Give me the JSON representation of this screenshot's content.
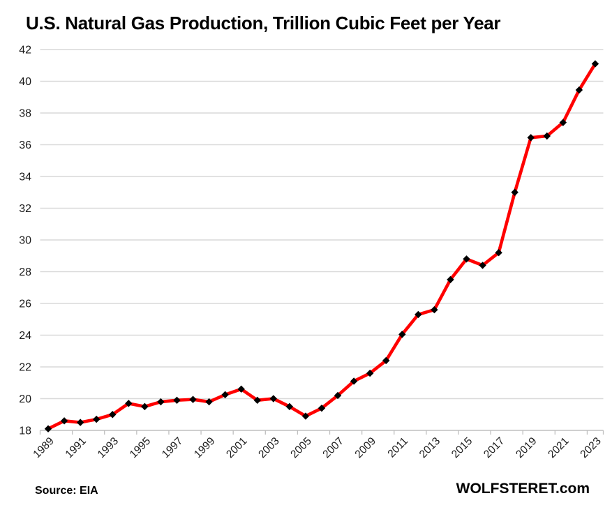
{
  "page": {
    "title": "U.S. Natural Gas Production, Trillion Cubic Feet per Year",
    "footer": {
      "source": "Source: EIA",
      "watermark": "WOLFSTERET.com"
    }
  },
  "chart_data": {
    "type": "line",
    "title": "U.S. Natural Gas Production, Trillion Cubic Feet per Year",
    "x": [
      1989,
      1990,
      1991,
      1992,
      1993,
      1994,
      1995,
      1996,
      1997,
      1998,
      1999,
      2000,
      2001,
      2002,
      2003,
      2004,
      2005,
      2006,
      2007,
      2008,
      2009,
      2010,
      2011,
      2012,
      2013,
      2014,
      2015,
      2016,
      2017,
      2018,
      2019,
      2020,
      2021,
      2022,
      2023
    ],
    "values": [
      18.1,
      18.6,
      18.5,
      18.7,
      19.0,
      19.7,
      19.5,
      19.8,
      19.9,
      19.95,
      19.8,
      20.25,
      20.6,
      19.9,
      20.0,
      19.5,
      18.9,
      19.4,
      20.2,
      21.1,
      21.6,
      22.4,
      24.05,
      25.3,
      25.6,
      27.5,
      28.8,
      28.4,
      29.2,
      33.0,
      36.45,
      36.55,
      37.4,
      39.45,
      41.1
    ],
    "ylim": [
      18,
      42
    ],
    "y_ticks": [
      18,
      20,
      22,
      24,
      26,
      28,
      30,
      32,
      34,
      36,
      38,
      40,
      42
    ],
    "x_tick_interval": 2,
    "xlabel": "",
    "ylabel": "",
    "grid": "horizontal",
    "legend": "none",
    "marker": "diamond",
    "colors": {
      "line": "#ff0000",
      "marker": "#000000",
      "gridline": "#d9d9d9",
      "axis": "#bfbfbf",
      "text": "#1a1a1a"
    }
  }
}
